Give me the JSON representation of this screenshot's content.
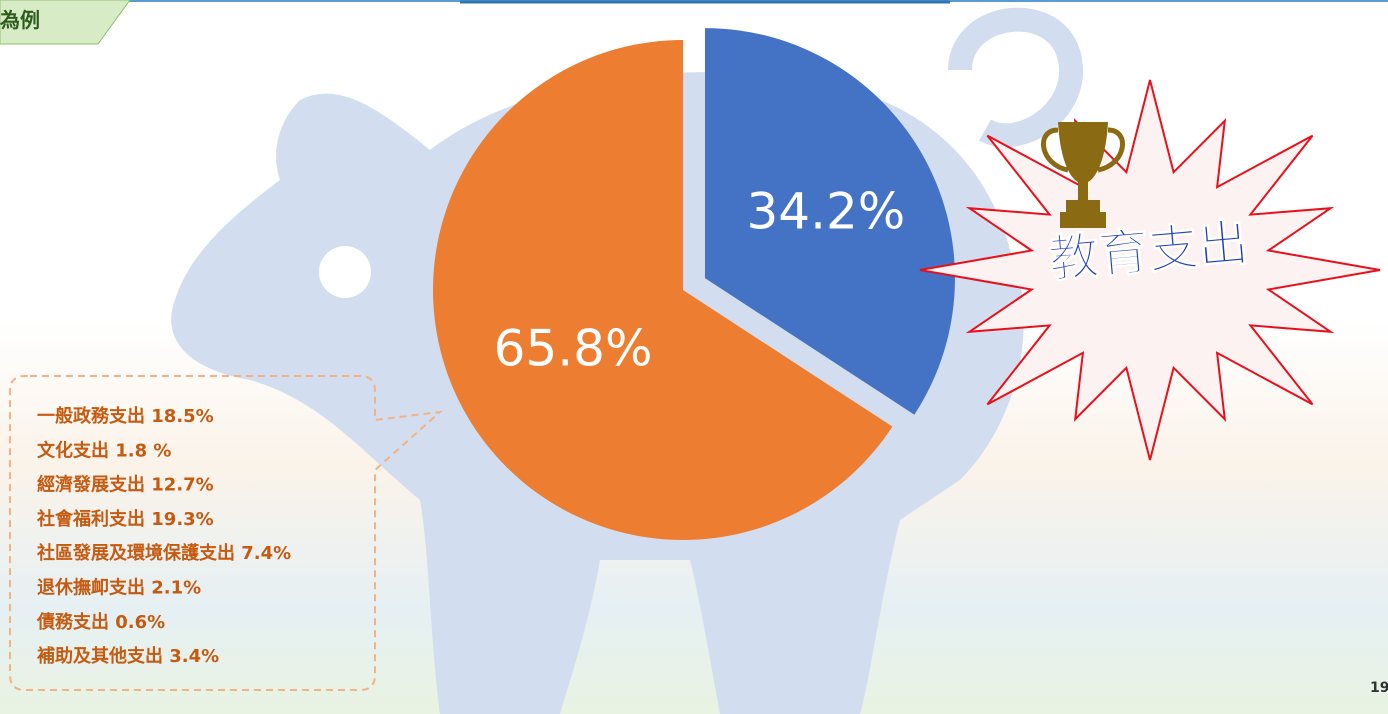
{
  "header": {
    "title": "為例"
  },
  "chart_data": {
    "type": "pie",
    "values": [
      34.2,
      65.8
    ],
    "value_labels": [
      "34.2%",
      "65.8%"
    ],
    "colors": [
      "#4472c4",
      "#ed7d31"
    ],
    "annotation": "教育支出",
    "breakdown": [
      "一般政務支出 18.5%",
      "文化支出 1.8 %",
      "經濟發展支出 12.7%",
      "社會福利支出 19.3%",
      "社區發展及環境保護支出 7.4%",
      "退休撫卹支出 2.1%",
      "債務支出 0.6%",
      "補助及其他支出 3.4%"
    ]
  },
  "page_number": "19"
}
